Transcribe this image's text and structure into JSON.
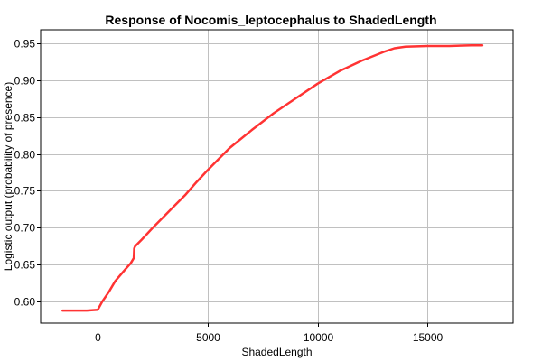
{
  "chart_data": {
    "type": "line",
    "title": "Response of Nocomis_leptocephalus to ShadedLength",
    "xlabel": "ShadedLength",
    "ylabel": "Logistic output (probability of presence)",
    "xlim": [
      -2600,
      18900
    ],
    "ylim": [
      0.571,
      0.968
    ],
    "xticks": [
      0,
      5000,
      10000,
      15000
    ],
    "yticks": [
      0.6,
      0.65,
      0.7,
      0.75,
      0.8,
      0.85,
      0.9,
      0.95
    ],
    "xtick_labels": [
      "0",
      "5000",
      "10000",
      "15000"
    ],
    "ytick_labels": [
      "0.60",
      "0.65",
      "0.70",
      "0.75",
      "0.80",
      "0.85",
      "0.90",
      "0.95"
    ],
    "grid": true,
    "series": [
      {
        "color": "#ff3333",
        "x": [
          -1600,
          -1000,
          -500,
          0,
          200,
          500,
          800,
          1200,
          1500,
          1640,
          1660,
          1700,
          2000,
          2500,
          3000,
          3500,
          4000,
          4500,
          5000,
          5500,
          6000,
          7000,
          8000,
          9000,
          10000,
          11000,
          12000,
          13000,
          13500,
          14000,
          15000,
          16000,
          17000,
          17500
        ],
        "y": [
          0.588,
          0.588,
          0.588,
          0.589,
          0.6,
          0.613,
          0.628,
          0.642,
          0.652,
          0.659,
          0.672,
          0.675,
          0.684,
          0.7,
          0.715,
          0.73,
          0.745,
          0.762,
          0.778,
          0.793,
          0.808,
          0.832,
          0.855,
          0.875,
          0.895,
          0.912,
          0.926,
          0.938,
          0.943,
          0.945,
          0.946,
          0.946,
          0.947,
          0.947
        ]
      }
    ]
  },
  "colors": {
    "line": "#ff3333",
    "grid": "#c0c0c0",
    "frame": "#000000",
    "background": "#ffffff"
  }
}
